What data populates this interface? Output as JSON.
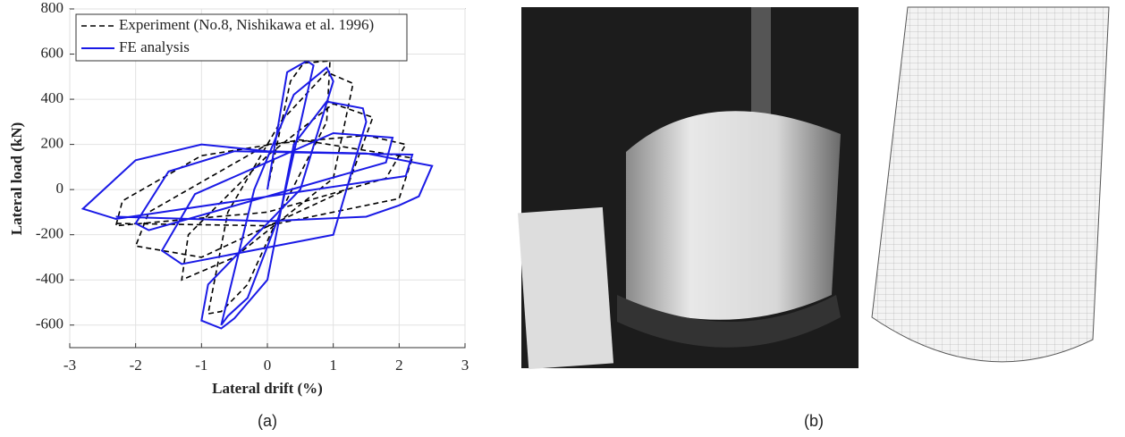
{
  "chart_data": {
    "type": "line",
    "xlabel": "Lateral drift (%)",
    "ylabel": "Lateral load (kN)",
    "xlim": [
      -3,
      3
    ],
    "xticks": [
      -3,
      -2,
      -1,
      0,
      1,
      2,
      3
    ],
    "ylim": [
      -700,
      800
    ],
    "yticks": [
      -600,
      -400,
      -200,
      0,
      200,
      400,
      600,
      800
    ],
    "grid": true,
    "legend": "upper left",
    "series": [
      {
        "name": "Experiment (No.8, Nishikawa et al. 1996)",
        "color": "#000000",
        "dash": true,
        "x": [
          0,
          0.35,
          0.55,
          0.95,
          0.9,
          0.2,
          -0.3,
          -0.7,
          -0.9,
          -0.6,
          0.2,
          0.9,
          1.3,
          1.0,
          -0.5,
          -1.3,
          -1.2,
          0,
          1.0,
          1.6,
          1.2,
          -1.0,
          -2.0,
          -1.8,
          0,
          1.5,
          2.1,
          1.8,
          0,
          -2.3,
          -2.2,
          -1.0,
          0.5,
          2.2,
          2.0,
          0,
          -2.3
        ],
        "values": [
          0,
          480,
          560,
          570,
          300,
          -100,
          -420,
          -540,
          -550,
          -100,
          300,
          520,
          470,
          50,
          -300,
          -400,
          -200,
          150,
          380,
          320,
          0,
          -300,
          -250,
          -100,
          200,
          240,
          200,
          50,
          -100,
          -160,
          -50,
          150,
          220,
          140,
          -40,
          -160,
          -150
        ]
      },
      {
        "name": "FE analysis",
        "color": "#1a1ae6",
        "dash": false,
        "x": [
          0,
          0.3,
          0.6,
          0.7,
          0.2,
          -0.3,
          -0.6,
          -0.7,
          -0.2,
          0.4,
          0.9,
          1.0,
          0.5,
          -0.9,
          -1.0,
          -0.7,
          -0.5,
          0,
          0.4,
          0.9,
          1.45,
          1.5,
          1.0,
          -1.3,
          -1.6,
          -1.1,
          1.0,
          1.9,
          1.8,
          -1.8,
          -2.0,
          -1.5,
          -0.5,
          2.2,
          2.1,
          -2.3,
          -2.8,
          -2.0,
          -1.0,
          0,
          1.5,
          2.5,
          2.3,
          2.0,
          1.5,
          0,
          -2.3
        ],
        "values": [
          0,
          520,
          570,
          550,
          -100,
          -480,
          -560,
          -600,
          0,
          420,
          540,
          480,
          0,
          -420,
          -580,
          -615,
          -570,
          -400,
          200,
          390,
          360,
          300,
          -200,
          -330,
          -270,
          -20,
          250,
          230,
          120,
          -180,
          -150,
          80,
          170,
          155,
          60,
          -130,
          -85,
          130,
          200,
          170,
          160,
          105,
          -30,
          -70,
          -120,
          -140,
          -120
        ]
      }
    ]
  },
  "captions": [
    "(a)",
    "(b)"
  ]
}
